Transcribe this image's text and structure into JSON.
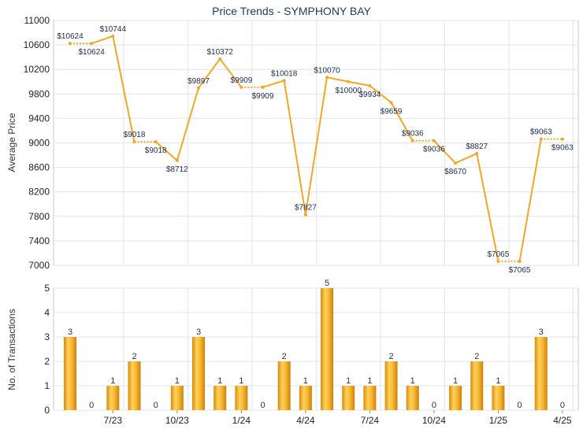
{
  "colors": {
    "line": "#f5a623",
    "bar": "#f0a52a",
    "label": "#333333",
    "title": "#1f3a6e",
    "grid": "#e4e4e4",
    "frame": "#c8c8c8"
  },
  "chart_data": [
    {
      "type": "line",
      "title": "Price Trends - SYMPHONY BAY",
      "ylabel": "Average Price",
      "xlabel": "",
      "ylim": [
        7000,
        11000
      ],
      "yticks": [
        "7000",
        "7400",
        "7800",
        "8200",
        "8600",
        "9000",
        "9400",
        "9800",
        "10200",
        "10600",
        "11000"
      ],
      "grid": true,
      "points": [
        {
          "m": 0,
          "value": 10624,
          "label": "$10624"
        },
        {
          "m": 1,
          "value": 10624,
          "label": "$10624"
        },
        {
          "m": 2,
          "value": 10744,
          "label": "$10744"
        },
        {
          "m": 3,
          "value": 9018,
          "label": "$9018"
        },
        {
          "m": 4,
          "value": 9018,
          "label": "$9018"
        },
        {
          "m": 5,
          "value": 8712,
          "label": "$8712"
        },
        {
          "m": 6,
          "value": 9897,
          "label": "$9897"
        },
        {
          "m": 7,
          "value": 10372,
          "label": "$10372"
        },
        {
          "m": 8,
          "value": 9909,
          "label": "$9909"
        },
        {
          "m": 9,
          "value": 9909,
          "label": "$9909"
        },
        {
          "m": 10,
          "value": 10018,
          "label": "$10018"
        },
        {
          "m": 11,
          "value": 7827,
          "label": "$7827"
        },
        {
          "m": 12,
          "value": 10070,
          "label": "$10070"
        },
        {
          "m": 13,
          "value": 10000,
          "label": "$10000"
        },
        {
          "m": 14,
          "value": 9934,
          "label": "$9934"
        },
        {
          "m": 15,
          "value": 9659,
          "label": "$9659"
        },
        {
          "m": 16,
          "value": 9036,
          "label": "$9036"
        },
        {
          "m": 17,
          "value": 9036,
          "label": "$9036"
        },
        {
          "m": 18,
          "value": 8670,
          "label": "$8670"
        },
        {
          "m": 19,
          "value": 8827,
          "label": "$8827"
        },
        {
          "m": 20,
          "value": 7065,
          "label": "$7065"
        },
        {
          "m": 21,
          "value": 7065,
          "label": "$7065"
        },
        {
          "m": 22,
          "value": 9063,
          "label": "$9063"
        },
        {
          "m": 23,
          "value": 9063,
          "label": "$9063"
        }
      ]
    },
    {
      "type": "bar",
      "ylabel": "No. of Transactions",
      "xlabel": "",
      "ylim": [
        0,
        5
      ],
      "yticks": [
        "0",
        "1",
        "2",
        "3",
        "4",
        "5"
      ],
      "categories": [
        "",
        "",
        "7/23",
        "",
        "",
        "10/23",
        "",
        "",
        "1/24",
        "",
        "",
        "4/24",
        "",
        "",
        "7/24",
        "",
        "",
        "10/24",
        "",
        "",
        "1/25",
        "",
        "",
        "4/25"
      ],
      "values": [
        3,
        0,
        1,
        2,
        0,
        1,
        3,
        1,
        1,
        0,
        2,
        1,
        5,
        1,
        1,
        2,
        1,
        0,
        1,
        2,
        1,
        0,
        3,
        0
      ],
      "xticks": [
        {
          "m": 2,
          "label": "7/23"
        },
        {
          "m": 5,
          "label": "10/23"
        },
        {
          "m": 8,
          "label": "1/24"
        },
        {
          "m": 11,
          "label": "4/24"
        },
        {
          "m": 14,
          "label": "7/24"
        },
        {
          "m": 17,
          "label": "10/24"
        },
        {
          "m": 20,
          "label": "1/25"
        },
        {
          "m": 23,
          "label": "4/25"
        }
      ]
    }
  ]
}
